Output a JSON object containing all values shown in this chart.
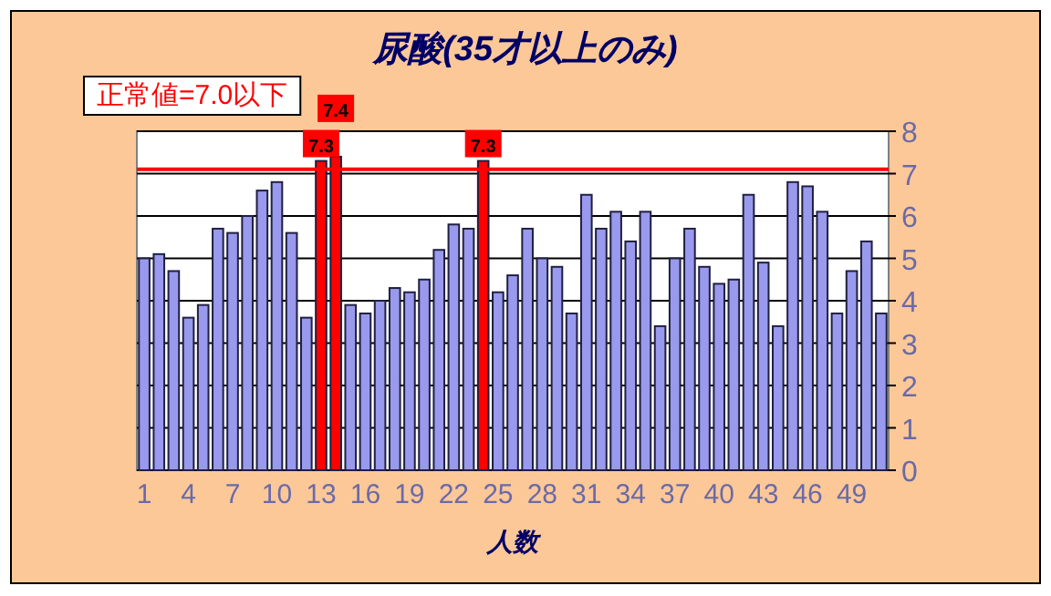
{
  "chart_data": {
    "type": "bar",
    "title": "尿酸(35才以上のみ)",
    "xlabel": "人数",
    "categories": [
      "1",
      null,
      null,
      "4",
      null,
      null,
      "7",
      null,
      null,
      "10",
      null,
      null,
      "13",
      null,
      null,
      "16",
      null,
      null,
      "19",
      null,
      null,
      "22",
      null,
      null,
      "25",
      null,
      null,
      "28",
      null,
      null,
      "31",
      null,
      null,
      "34",
      null,
      null,
      "37",
      null,
      null,
      "40",
      null,
      null,
      "43",
      null,
      null,
      "46",
      null,
      null,
      "49",
      null,
      null
    ],
    "values": [
      5.0,
      5.1,
      4.7,
      3.6,
      3.9,
      5.7,
      5.6,
      6.0,
      6.6,
      6.8,
      5.6,
      3.6,
      7.3,
      7.4,
      3.9,
      3.7,
      4.0,
      4.3,
      4.2,
      4.5,
      5.2,
      5.8,
      5.7,
      7.3,
      4.2,
      4.6,
      5.7,
      5.0,
      4.8,
      3.7,
      6.5,
      5.7,
      6.1,
      5.4,
      6.1,
      3.4,
      5.0,
      5.7,
      4.8,
      4.4,
      4.5,
      6.5,
      4.9,
      3.4,
      6.8,
      6.7,
      6.1,
      3.7,
      4.7,
      5.4,
      3.7
    ],
    "colors": [
      "#9999ee",
      "#9999ee",
      "#9999ee",
      "#9999ee",
      "#9999ee",
      "#9999ee",
      "#9999ee",
      "#9999ee",
      "#9999ee",
      "#9999ee",
      "#9999ee",
      "#9999ee",
      "#ff0000",
      "#ff0000",
      "#9999ee",
      "#9999ee",
      "#9999ee",
      "#9999ee",
      "#9999ee",
      "#9999ee",
      "#9999ee",
      "#9999ee",
      "#9999ee",
      "#ff0000",
      "#9999ee",
      "#9999ee",
      "#9999ee",
      "#9999ee",
      "#9999ee",
      "#9999ee",
      "#9999ee",
      "#9999ee",
      "#9999ee",
      "#9999ee",
      "#9999ee",
      "#9999ee",
      "#9999ee",
      "#9999ee",
      "#9999ee",
      "#9999ee",
      "#9999ee",
      "#9999ee",
      "#9999ee",
      "#9999ee",
      "#9999ee",
      "#9999ee",
      "#9999ee",
      "#9999ee",
      "#9999ee",
      "#9999ee",
      "#9999ee"
    ],
    "value_labels": [
      null,
      null,
      null,
      null,
      null,
      null,
      null,
      null,
      null,
      null,
      null,
      null,
      "7.3",
      "7.4",
      null,
      null,
      null,
      null,
      null,
      null,
      null,
      null,
      null,
      "7.3",
      null,
      null,
      null,
      null,
      null,
      null,
      null,
      null,
      null,
      null,
      null,
      null,
      null,
      null,
      null,
      null,
      null,
      null,
      null,
      null,
      null,
      null,
      null,
      null,
      null,
      null,
      null
    ],
    "ylim": [
      0,
      8
    ],
    "yticks": [
      0,
      1,
      2,
      3,
      4,
      5,
      6,
      7,
      8
    ],
    "grid": "y",
    "ref_lines": [
      {
        "axis": "y",
        "value": 7.1,
        "color": "#ff0000"
      }
    ],
    "annotations": [
      "正常値=7.0以下"
    ]
  }
}
